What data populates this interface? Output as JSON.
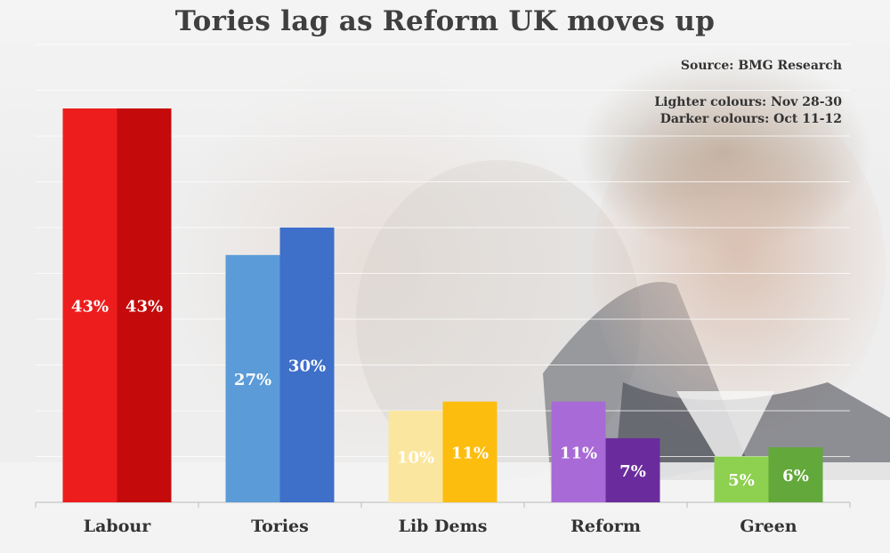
{
  "title": "Tories lag as Reform UK moves up",
  "source": "Source: BMG Research",
  "legend": {
    "lighter": "Lighter colours: Nov 28-30",
    "darker": "Darker colours: Oct 11-12"
  },
  "chart_data": {
    "type": "bar",
    "title": "Tories lag as Reform UK moves up",
    "categories": [
      "Labour",
      "Tories",
      "Lib Dems",
      "Reform",
      "Green"
    ],
    "series": [
      {
        "name": "Nov 28-30",
        "values": [
          43,
          27,
          10,
          11,
          5
        ]
      },
      {
        "name": "Oct 11-12",
        "values": [
          43,
          30,
          11,
          7,
          6
        ]
      }
    ],
    "value_suffix": "%",
    "colors": {
      "Labour": {
        "light": "#ee1d1d",
        "dark": "#c40a0a"
      },
      "Tories": {
        "light": "#5b9bd8",
        "dark": "#3e6fc9"
      },
      "Lib Dems": {
        "light": "#fbe6a0",
        "dark": "#fdbd0f"
      },
      "Reform": {
        "light": "#a86ad6",
        "dark": "#6a2c9c"
      },
      "Green": {
        "light": "#8ed050",
        "dark": "#62a83a"
      }
    },
    "ylim": [
      0,
      44
    ],
    "grid": true,
    "legend_position": "top-right"
  }
}
